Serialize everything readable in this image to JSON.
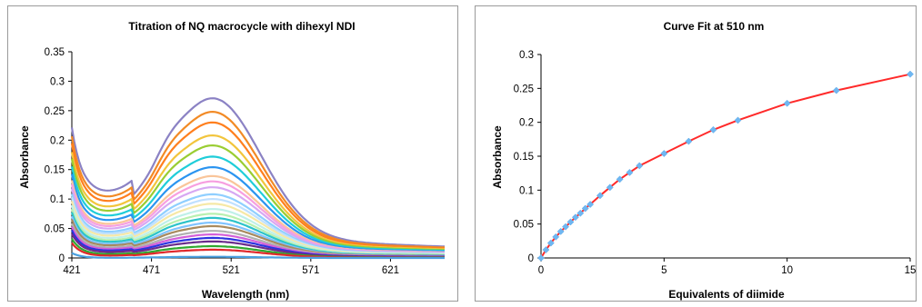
{
  "chart_data": [
    {
      "type": "line",
      "title": "Titration of NQ macrocycle with dihexyl NDI",
      "xlabel": "Wavelength (nm)",
      "ylabel": "Absorbance",
      "xlim": [
        421,
        655
      ],
      "ylim": [
        0,
        0.35
      ],
      "x_ticks": [
        "421",
        "471",
        "521",
        "571",
        "621"
      ],
      "y_ticks": [
        "0",
        "0.05",
        "0.1",
        "0.15",
        "0.2",
        "0.25",
        "0.3",
        "0.35"
      ],
      "grid": false,
      "legend": "none",
      "series_peak_values": [
        0.271,
        0.248,
        0.23,
        0.208,
        0.191,
        0.172,
        0.154,
        0.139,
        0.13,
        0.12,
        0.108,
        0.1,
        0.092,
        0.083,
        0.075,
        0.068,
        0.06,
        0.054,
        0.046,
        0.04,
        0.034,
        0.028,
        0.02,
        0.014,
        0.002
      ],
      "series_colors": [
        "#8B82C4",
        "#F28A25",
        "#FF7F1E",
        "#F2C53C",
        "#9ACD32",
        "#1FCDD9",
        "#2A94F0",
        "#F9C59A",
        "#F79FE0",
        "#D7A8F2",
        "#8FCFFF",
        "#BFE0FF",
        "#F6E8A6",
        "#BFF0E8",
        "#B8F0B0",
        "#2CC3C9",
        "#7FC3FF",
        "#A88A5E",
        "#B0B0B0",
        "#D45FD9",
        "#2B34E0",
        "#6A2B8C",
        "#2FA82F",
        "#E0282A",
        "#4AA0E0"
      ]
    },
    {
      "type": "scatter",
      "title": "Curve Fit at 510 nm",
      "xlabel": "Equivalents of diimide",
      "ylabel": "Absorbance",
      "xlim": [
        0,
        15
      ],
      "ylim": [
        0,
        0.3
      ],
      "x_ticks": [
        "0",
        "5",
        "10",
        "15"
      ],
      "y_ticks": [
        "0",
        "0.05",
        "0.1",
        "0.15",
        "0.2",
        "0.25",
        "0.3"
      ],
      "grid": false,
      "legend": "none",
      "points": [
        [
          0,
          0
        ],
        [
          0.2,
          0.012
        ],
        [
          0.4,
          0.022
        ],
        [
          0.6,
          0.031
        ],
        [
          0.8,
          0.039
        ],
        [
          1.0,
          0.046
        ],
        [
          1.2,
          0.053
        ],
        [
          1.4,
          0.06
        ],
        [
          1.6,
          0.066
        ],
        [
          1.8,
          0.073
        ],
        [
          2.0,
          0.079
        ],
        [
          2.4,
          0.092
        ],
        [
          2.8,
          0.104
        ],
        [
          3.2,
          0.116
        ],
        [
          3.6,
          0.126
        ],
        [
          4.0,
          0.136
        ],
        [
          5.0,
          0.154
        ],
        [
          6.0,
          0.172
        ],
        [
          7.0,
          0.189
        ],
        [
          8.0,
          0.203
        ],
        [
          10.0,
          0.228
        ],
        [
          12.0,
          0.247
        ],
        [
          15.0,
          0.271
        ]
      ],
      "point_color": "#6FB7F2",
      "fit_color": "#FF2A2A"
    }
  ]
}
